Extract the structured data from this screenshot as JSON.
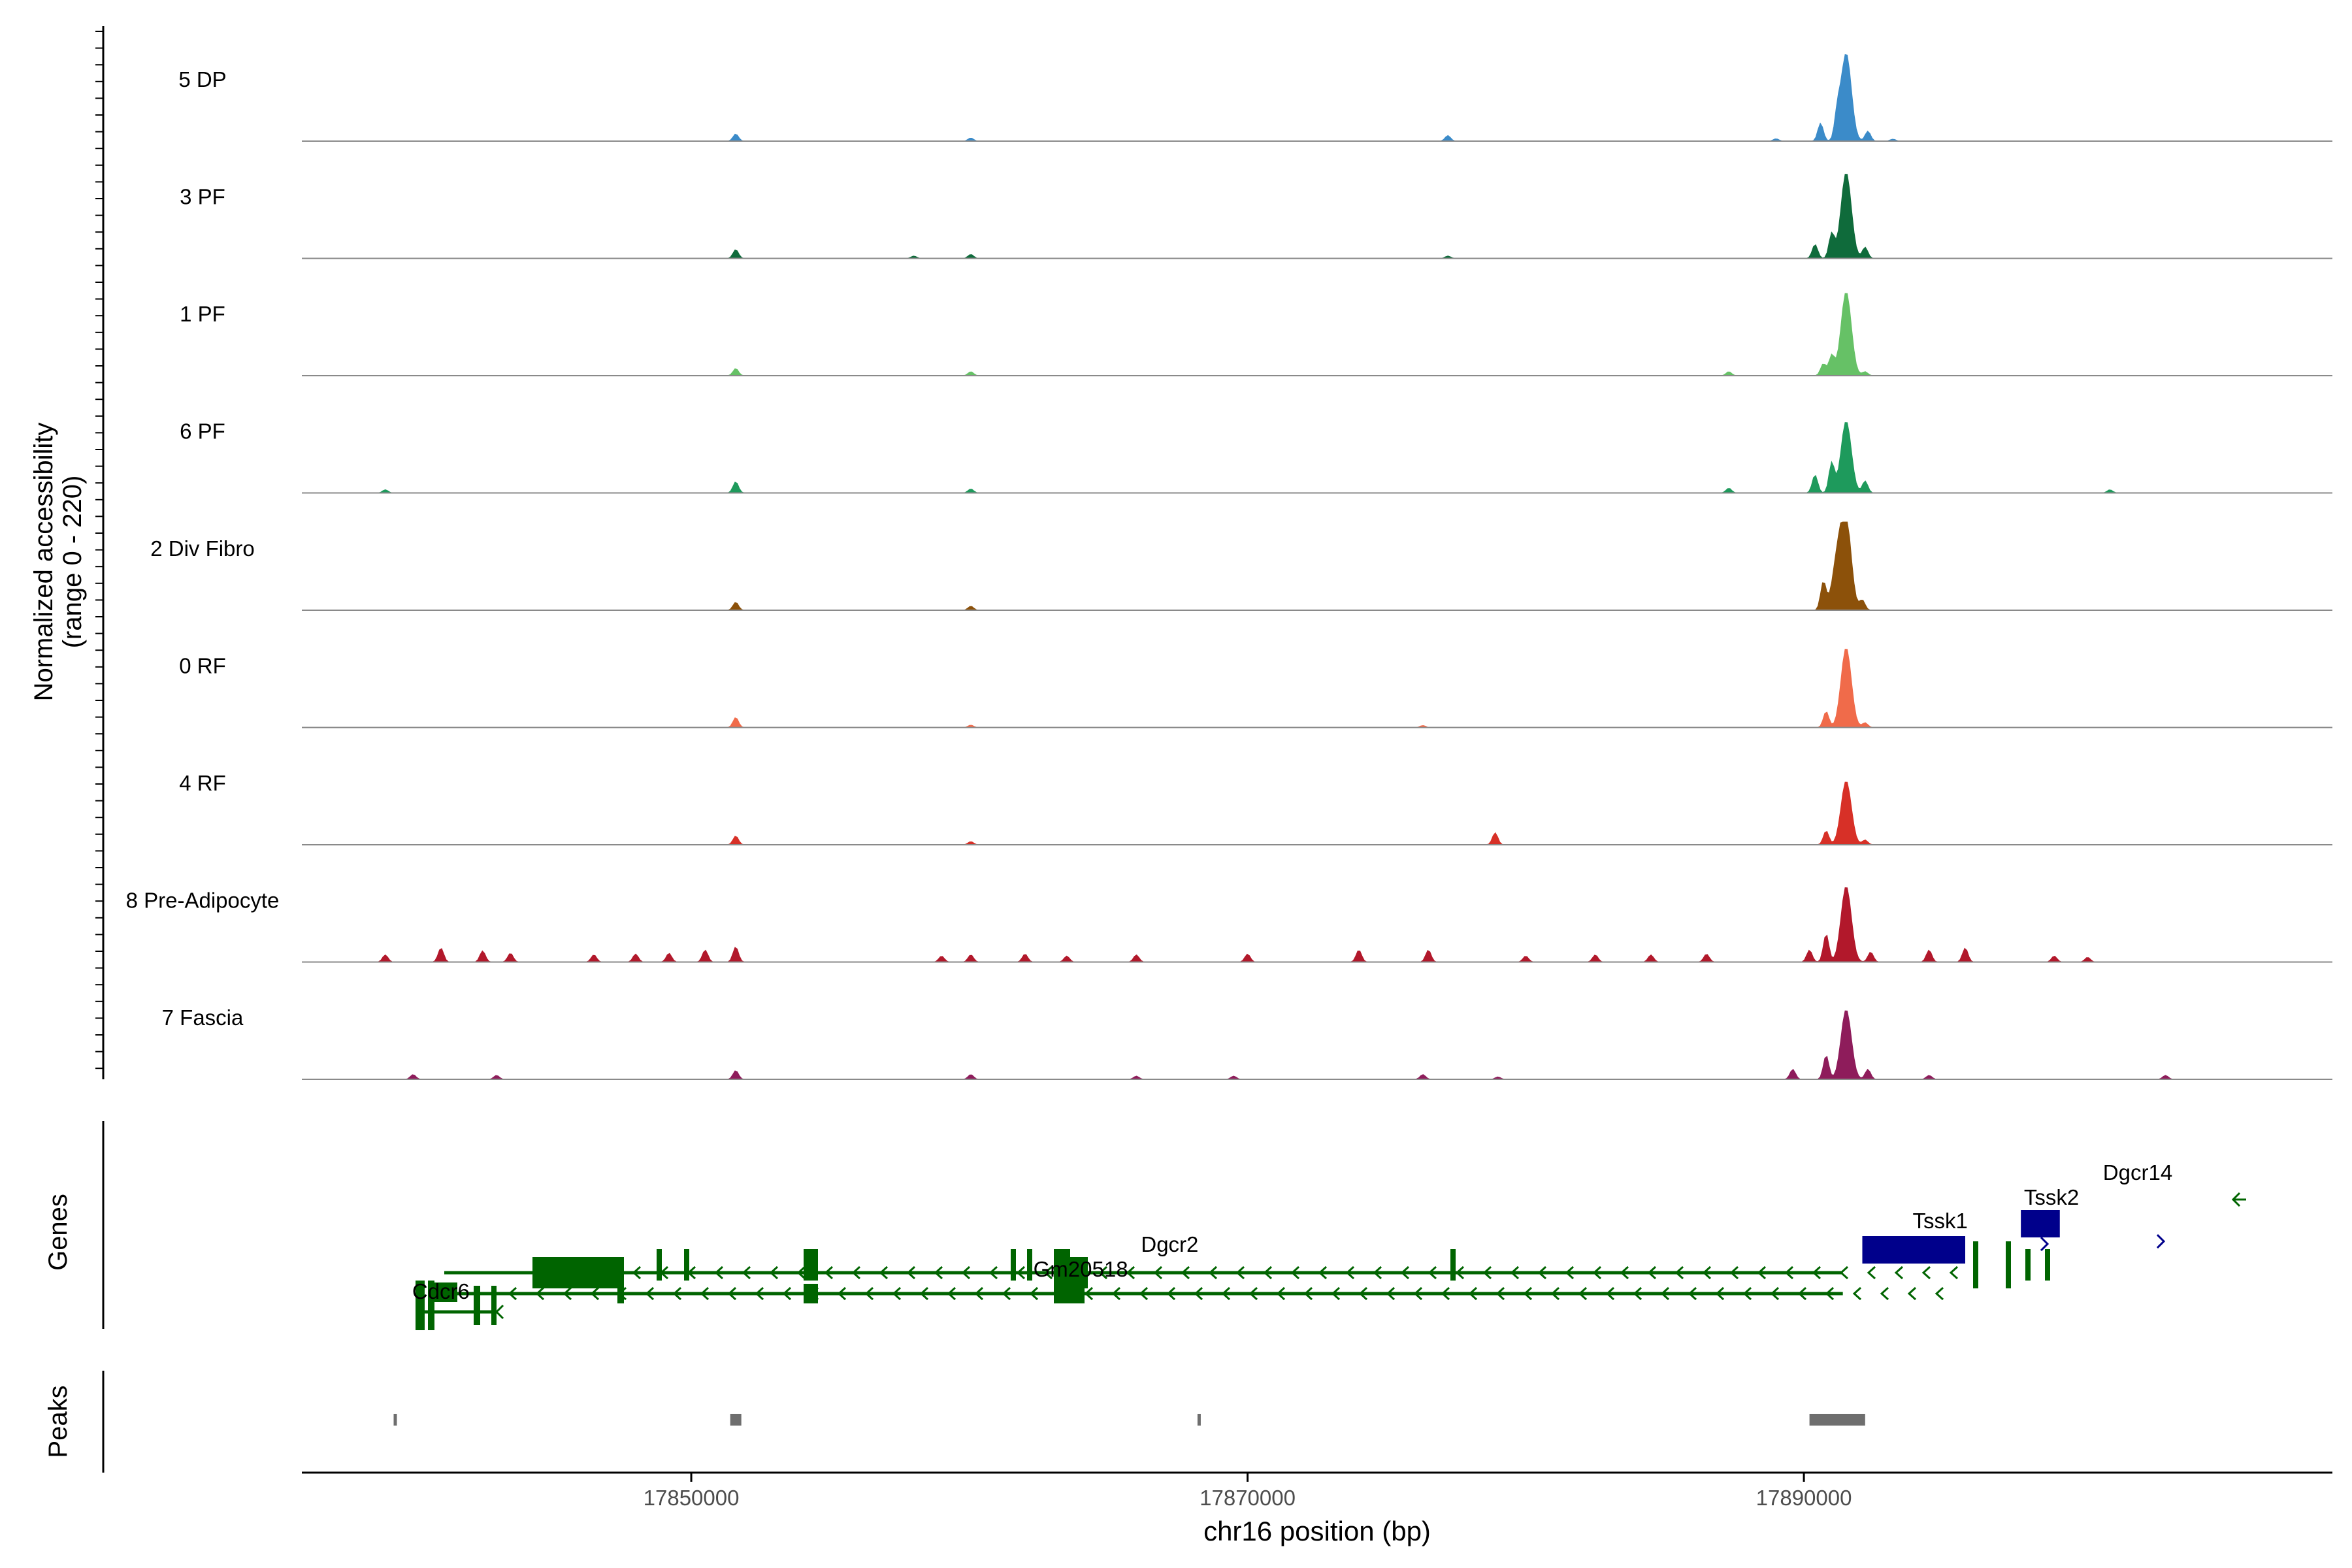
{
  "chart_data": {
    "type": "area",
    "title": "",
    "ylabel_line1": "Normalized accessibility",
    "ylabel_line2": "(range 0 - 220)",
    "yrange": [
      0,
      220
    ],
    "xlabel": "chr16 position (bp)",
    "xlim": [
      17836000,
      17909000
    ],
    "xticks": [
      17850000,
      17870000,
      17890000
    ],
    "xtick_labels": [
      "17850000",
      "17870000",
      "17890000"
    ],
    "gene_panel_label": "Genes",
    "peak_panel_label": "Peaks",
    "tracks": [
      {
        "name": "5 DP",
        "color": "#3B8BC9",
        "peaks": [
          [
            17851600,
            18
          ],
          [
            17860050,
            8
          ],
          [
            17877200,
            14
          ],
          [
            17889000,
            6
          ],
          [
            17890600,
            45
          ],
          [
            17891200,
            55
          ],
          [
            17891520,
            220
          ],
          [
            17892300,
            25
          ],
          [
            17893200,
            5
          ]
        ]
      },
      {
        "name": "3 PF",
        "color": "#0F6B3B",
        "peaks": [
          [
            17851600,
            22
          ],
          [
            17858000,
            6
          ],
          [
            17860050,
            10
          ],
          [
            17877200,
            6
          ],
          [
            17890400,
            35
          ],
          [
            17891000,
            62
          ],
          [
            17891520,
            215
          ],
          [
            17892200,
            28
          ]
        ]
      },
      {
        "name": "1 PF",
        "color": "#66C166",
        "peaks": [
          [
            17851600,
            18
          ],
          [
            17860050,
            10
          ],
          [
            17887300,
            10
          ],
          [
            17890700,
            30
          ],
          [
            17891000,
            50
          ],
          [
            17891520,
            210
          ],
          [
            17892200,
            10
          ]
        ]
      },
      {
        "name": "6 PF",
        "color": "#1E9A5C",
        "peaks": [
          [
            17839000,
            8
          ],
          [
            17851600,
            28
          ],
          [
            17860050,
            10
          ],
          [
            17887300,
            12
          ],
          [
            17890400,
            45
          ],
          [
            17891000,
            75
          ],
          [
            17891520,
            180
          ],
          [
            17892200,
            30
          ],
          [
            17901000,
            8
          ]
        ]
      },
      {
        "name": "2 Div Fibro",
        "color": "#8C510A",
        "peaks": [
          [
            17851600,
            20
          ],
          [
            17860050,
            10
          ],
          [
            17890700,
            70
          ],
          [
            17891200,
            120
          ],
          [
            17891520,
            220
          ],
          [
            17892100,
            25
          ]
        ]
      },
      {
        "name": "0 RF",
        "color": "#F06B4A",
        "peaks": [
          [
            17851600,
            25
          ],
          [
            17860050,
            6
          ],
          [
            17876300,
            5
          ],
          [
            17890800,
            40
          ],
          [
            17891520,
            200
          ],
          [
            17892200,
            12
          ]
        ]
      },
      {
        "name": "4 RF",
        "color": "#D73027",
        "peaks": [
          [
            17851600,
            22
          ],
          [
            17860050,
            8
          ],
          [
            17878900,
            30
          ],
          [
            17890800,
            35
          ],
          [
            17891520,
            160
          ],
          [
            17892200,
            12
          ]
        ]
      },
      {
        "name": "8 Pre-Adipocyte",
        "color": "#B2182B",
        "peaks": [
          [
            17839000,
            18
          ],
          [
            17841000,
            35
          ],
          [
            17842500,
            28
          ],
          [
            17843500,
            22
          ],
          [
            17846500,
            18
          ],
          [
            17848000,
            20
          ],
          [
            17849200,
            22
          ],
          [
            17850500,
            30
          ],
          [
            17851600,
            38
          ],
          [
            17859000,
            15
          ],
          [
            17860050,
            18
          ],
          [
            17862000,
            20
          ],
          [
            17863500,
            15
          ],
          [
            17866000,
            18
          ],
          [
            17870000,
            20
          ],
          [
            17874000,
            30
          ],
          [
            17876500,
            30
          ],
          [
            17880000,
            15
          ],
          [
            17882500,
            18
          ],
          [
            17884500,
            18
          ],
          [
            17886500,
            20
          ],
          [
            17890200,
            30
          ],
          [
            17890800,
            70
          ],
          [
            17891520,
            190
          ],
          [
            17892400,
            25
          ],
          [
            17894500,
            30
          ],
          [
            17895800,
            35
          ],
          [
            17899000,
            15
          ],
          [
            17900200,
            12
          ]
        ]
      },
      {
        "name": "7 Fascia",
        "color": "#8E1C5B",
        "peaks": [
          [
            17840000,
            12
          ],
          [
            17843000,
            10
          ],
          [
            17851600,
            22
          ],
          [
            17860050,
            12
          ],
          [
            17866000,
            8
          ],
          [
            17869500,
            8
          ],
          [
            17876300,
            12
          ],
          [
            17879000,
            6
          ],
          [
            17889600,
            25
          ],
          [
            17890800,
            60
          ],
          [
            17891520,
            175
          ],
          [
            17892300,
            25
          ],
          [
            17894500,
            10
          ],
          [
            17903000,
            10
          ]
        ]
      }
    ],
    "genes": {
      "colors": {
        "minus": "#006400",
        "plus": "#00008B"
      },
      "labels": [
        {
          "name": "Dgcr2",
          "pos": 17867200
        },
        {
          "name": "Gm20518",
          "pos": 17864000
        },
        {
          "name": "Cdcr6",
          "pos": 17841000
        },
        {
          "name": "Tssk1",
          "pos": 17894900
        },
        {
          "name": "Tssk2",
          "pos": 17898900
        },
        {
          "name": "Dgcr14",
          "pos": 17902000
        }
      ]
    },
    "peaks": [
      [
        17839300,
        17839350
      ],
      [
        17851400,
        17851800
      ],
      [
        17868200,
        17868300
      ],
      [
        17890200,
        17892200
      ]
    ]
  }
}
